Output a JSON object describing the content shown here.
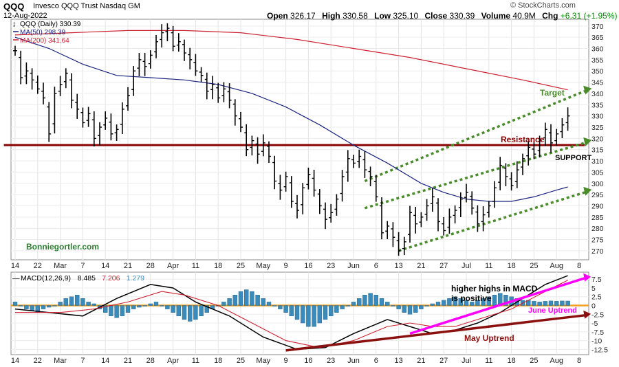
{
  "header": {
    "symbol": "QQQ",
    "name": "Invesco QQQ Trust Nasdaq GM",
    "date": "12-Aug-2022",
    "brand": "© StockCharts.com",
    "open_label": "Open",
    "open": "326.17",
    "high_label": "High",
    "high": "330.58",
    "low_label": "Low",
    "low": "325.10",
    "close_label": "Close",
    "close": "330.39",
    "volume_label": "Volume",
    "volume": "40.9M",
    "chg_label": "Chg",
    "chg": "+6.31 (+1.95%)"
  },
  "chart_data": [
    {
      "type": "line",
      "panel": "price",
      "legend": [
        {
          "text": "QQQ (Daily) 330.39",
          "color": "#000000"
        },
        {
          "text": "MA(50) 298.39",
          "color": "#1a237e"
        },
        {
          "text": "MA(200) 341.64",
          "color": "#cc2030"
        }
      ],
      "ylim": [
        266,
        373
      ],
      "yticks": [
        270,
        275,
        280,
        285,
        290,
        295,
        300,
        305,
        310,
        315,
        320,
        325,
        330,
        335,
        340,
        345,
        350,
        355,
        360,
        365,
        370
      ],
      "x_ticks": [
        "14",
        "22",
        "Mar",
        "7",
        "14",
        "21",
        "28",
        "Apr",
        "11",
        "18",
        "25",
        "May",
        "9",
        "16",
        "23",
        "Jun",
        "6",
        "13",
        "21",
        "27",
        "Jul",
        "11",
        "18",
        "25",
        "Aug",
        "8"
      ],
      "series": [
        {
          "name": "QQQ",
          "style": "ohlc bars",
          "color": "#000000",
          "close": [
            359,
            347,
            350,
            346,
            342,
            338,
            322,
            340,
            344,
            349,
            337,
            333,
            327,
            331,
            320,
            325,
            329,
            322,
            324,
            333,
            339,
            350,
            355,
            352,
            357,
            363,
            367,
            369,
            361,
            363,
            358,
            355,
            350,
            348,
            341,
            344,
            338,
            342,
            337,
            330,
            325,
            315,
            319,
            313,
            318,
            312,
            301,
            297,
            303,
            292,
            288,
            298,
            304,
            297,
            290,
            284,
            287,
            293,
            303,
            311,
            309,
            312,
            306,
            303,
            294,
            278,
            281,
            276,
            270,
            274,
            287,
            282,
            285,
            290,
            294,
            283,
            279,
            285,
            288,
            293,
            296,
            289,
            282,
            286,
            290,
            298,
            308,
            303,
            299,
            306,
            311,
            316,
            313,
            319,
            324,
            318,
            322,
            326,
            330
          ]
        },
        {
          "name": "MA(50)",
          "color": "#1a237e",
          "points": [
            [
              0,
              365
            ],
            [
              6,
              360
            ],
            [
              12,
              353
            ],
            [
              18,
              348
            ],
            [
              24,
              347
            ],
            [
              30,
              346
            ],
            [
              36,
              344
            ],
            [
              42,
              340
            ],
            [
              48,
              334
            ],
            [
              54,
              326
            ],
            [
              60,
              317
            ],
            [
              66,
              309
            ],
            [
              72,
              300
            ],
            [
              76,
              296
            ],
            [
              80,
              293
            ],
            [
              84,
              292
            ],
            [
              88,
              292
            ],
            [
              92,
              294
            ],
            [
              96,
              297
            ],
            [
              98,
              298.4
            ]
          ]
        },
        {
          "name": "MA(200)",
          "color": "#cc2030",
          "points": [
            [
              0,
              366
            ],
            [
              10,
              367
            ],
            [
              20,
              368
            ],
            [
              30,
              368
            ],
            [
              40,
              367
            ],
            [
              50,
              364
            ],
            [
              60,
              360
            ],
            [
              70,
              356
            ],
            [
              80,
              351
            ],
            [
              90,
              346
            ],
            [
              98,
              341.6
            ]
          ]
        }
      ],
      "trendlines": [
        {
          "label": "",
          "color": "#8b0000",
          "from": [
            -2,
            317
          ],
          "to": [
            101,
            317
          ]
        },
        {
          "label": "Target",
          "color": "#4a8c2a",
          "dashed": true,
          "from": [
            62,
            301
          ],
          "to": [
            101,
            341
          ]
        },
        {
          "label": "",
          "color": "#4a8c2a",
          "dashed": true,
          "from": [
            62,
            289
          ],
          "to": [
            101,
            318
          ]
        },
        {
          "label": "",
          "color": "#4a8c2a",
          "dashed": true,
          "from": [
            68,
            270
          ],
          "to": [
            101,
            296
          ]
        }
      ],
      "annotations": [
        {
          "text": "Target",
          "color": "#4a8c2a"
        },
        {
          "text": "Resistance",
          "color": "#8b0000"
        },
        {
          "text": "SUPPORT",
          "color": "#000000"
        },
        {
          "text": "Bonniegortler.com",
          "color": "#2e7d32"
        }
      ]
    },
    {
      "type": "bar",
      "panel": "macd",
      "legend": [
        {
          "text": "MACD(12,26,9)",
          "color": "#000000"
        },
        {
          "text": "8.485",
          "color": "#000000"
        },
        {
          "text": "7.206",
          "color": "#cc2030"
        },
        {
          "text": "1.279",
          "color": "#3b8bba"
        }
      ],
      "ylim": [
        -14,
        9.5
      ],
      "yticks": [
        -12.5,
        -10,
        -7.5,
        -5,
        -2.5,
        0,
        2.5,
        5,
        7.5
      ],
      "zero_line_color": "#f0a020",
      "series": [
        {
          "name": "MACD",
          "color": "#000000",
          "points": [
            [
              0,
              -1
            ],
            [
              6,
              -2
            ],
            [
              12,
              -3
            ],
            [
              18,
              2
            ],
            [
              24,
              6
            ],
            [
              28,
              5
            ],
            [
              32,
              1
            ],
            [
              38,
              -3
            ],
            [
              44,
              -9
            ],
            [
              50,
              -12.5
            ],
            [
              55,
              -12
            ],
            [
              60,
              -8
            ],
            [
              66,
              -4
            ],
            [
              70,
              -6
            ],
            [
              74,
              -8
            ],
            [
              78,
              -7
            ],
            [
              82,
              -5
            ],
            [
              86,
              -2
            ],
            [
              90,
              2
            ],
            [
              94,
              6
            ],
            [
              98,
              8.5
            ]
          ]
        },
        {
          "name": "Signal",
          "color": "#cc2030",
          "points": [
            [
              0,
              -2
            ],
            [
              8,
              -2
            ],
            [
              14,
              -1
            ],
            [
              20,
              1
            ],
            [
              26,
              4
            ],
            [
              30,
              3
            ],
            [
              36,
              0
            ],
            [
              42,
              -5
            ],
            [
              48,
              -10
            ],
            [
              54,
              -12
            ],
            [
              60,
              -10
            ],
            [
              66,
              -6
            ],
            [
              70,
              -5
            ],
            [
              74,
              -6
            ],
            [
              78,
              -6
            ],
            [
              82,
              -4
            ],
            [
              88,
              -1
            ],
            [
              94,
              4
            ],
            [
              98,
              7.2
            ]
          ]
        },
        {
          "name": "Histogram",
          "color": "#3b8bba",
          "values": [
            1,
            0,
            -1,
            -1.5,
            -2,
            -1,
            -0.5,
            0,
            1,
            2,
            2.5,
            3,
            2,
            1,
            0.5,
            -1,
            -2,
            -3,
            -3.5,
            -3,
            -2,
            -1,
            -0.5,
            0,
            0.5,
            1,
            0,
            -1,
            -2,
            -3,
            -4,
            -4.5,
            -4,
            -3,
            -2,
            -1,
            0,
            1,
            2,
            3,
            4,
            4.5,
            4,
            3,
            2,
            1,
            0,
            -1,
            -2,
            -3,
            -4,
            -5,
            -6,
            -6,
            -5,
            -4,
            -3,
            -2,
            -1,
            0,
            1,
            2,
            3,
            3.5,
            3,
            2,
            1,
            0,
            -1,
            -2,
            -2.5,
            -2,
            -1,
            0,
            0.5,
            1,
            1.5,
            2,
            2.5,
            2,
            1.5,
            1,
            1.5,
            2,
            2.5,
            3,
            3.5,
            3,
            2.5,
            2,
            1.5,
            1.5,
            1.2,
            1,
            1.2,
            1.3,
            1.2,
            1.3,
            1.28
          ]
        }
      ],
      "trendlines": [
        {
          "label": "June Uptrend",
          "color": "#ff00ff",
          "from": [
            70,
            -8
          ],
          "to": [
            101,
            7.8
          ]
        },
        {
          "label": "May Uptrend",
          "color": "#8b1010",
          "from": [
            48,
            -12.8
          ],
          "to": [
            101,
            -2.8
          ]
        }
      ],
      "annotations": [
        {
          "text": "higher highs in MACD",
          "color": "#000000"
        },
        {
          "text": "is positive",
          "color": "#000000"
        },
        {
          "text": "June Uptrend",
          "color": "#ff00ff"
        },
        {
          "text": "May Uptrend",
          "color": "#8b1010"
        }
      ]
    }
  ]
}
